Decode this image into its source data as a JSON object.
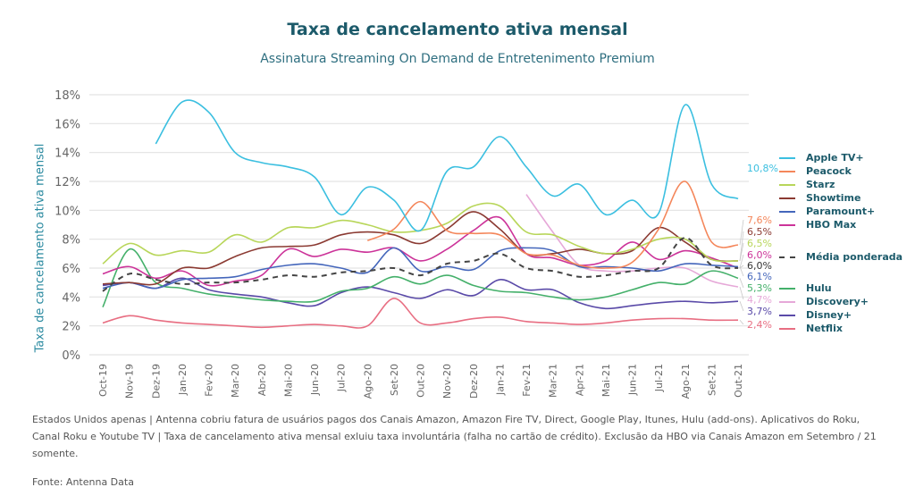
{
  "chart_data": {
    "type": "line",
    "title": "Taxa de cancelamento ativa mensal",
    "subtitle": "Assinatura Streaming On Demand de Entretenimento Premium",
    "xlabel": "",
    "ylabel": "Taxa de cancelamento ativa mensal",
    "ylim": [
      0,
      18
    ],
    "yticks": [
      "0%",
      "2%",
      "4%",
      "6%",
      "8%",
      "10%",
      "12%",
      "14%",
      "16%",
      "18%"
    ],
    "grid": true,
    "legend_position": "right",
    "categories": [
      "Oct-19",
      "Nov-19",
      "Dez-19",
      "Jan-20",
      "Fev-20",
      "Mar-20",
      "Abr-20",
      "Mai-20",
      "Jun-20",
      "Jul-20",
      "Ago-20",
      "Set-20",
      "Out-20",
      "Nov-20",
      "Dez-20",
      "Jan-21",
      "Fev-21",
      "Mar-21",
      "Apr-21",
      "Mai-21",
      "Jun-21",
      "Jul-21",
      "Ago-21",
      "Set-21",
      "Out-21"
    ],
    "series": [
      {
        "name": "Apple TV+",
        "color": "#3bbfe0",
        "dashed": false,
        "end_label": "10,8%",
        "values": [
          null,
          null,
          14.6,
          17.5,
          16.8,
          14.0,
          13.3,
          13.0,
          12.3,
          9.7,
          11.6,
          10.7,
          8.6,
          12.7,
          13.0,
          15.1,
          13.0,
          11.0,
          11.8,
          9.7,
          10.7,
          9.8,
          17.3,
          11.8,
          10.8
        ]
      },
      {
        "name": "Peacock",
        "color": "#f4865a",
        "dashed": false,
        "end_label": "7,6%",
        "values": [
          null,
          null,
          null,
          null,
          null,
          null,
          null,
          null,
          null,
          null,
          7.9,
          8.7,
          10.6,
          8.6,
          8.4,
          8.3,
          7.0,
          6.9,
          6.2,
          6.0,
          6.4,
          8.7,
          12.0,
          7.8,
          7.6
        ]
      },
      {
        "name": "Starz",
        "color": "#b8d65a",
        "dashed": false,
        "end_label": "6,5%",
        "values": [
          6.3,
          7.7,
          6.9,
          7.2,
          7.1,
          8.3,
          7.8,
          8.8,
          8.8,
          9.3,
          9.0,
          8.5,
          8.6,
          9.1,
          10.3,
          10.3,
          8.5,
          8.3,
          7.5,
          7.0,
          7.3,
          8.0,
          8.0,
          6.6,
          6.5
        ]
      },
      {
        "name": "Showtime",
        "color": "#8b3a32",
        "dashed": false,
        "end_label": "6,5%",
        "values": [
          4.9,
          5.0,
          4.9,
          6.0,
          6.0,
          6.8,
          7.4,
          7.5,
          7.6,
          8.3,
          8.5,
          8.3,
          7.7,
          8.7,
          9.9,
          8.7,
          7.0,
          7.0,
          7.3,
          7.0,
          7.2,
          8.8,
          7.8,
          6.6,
          6.5
        ]
      },
      {
        "name": "Paramount+",
        "color": "#4466bb",
        "dashed": false,
        "end_label": "6,1%",
        "values": [
          4.6,
          5.0,
          4.6,
          5.2,
          5.3,
          5.4,
          5.9,
          6.2,
          6.3,
          6.0,
          5.7,
          7.4,
          5.8,
          6.1,
          5.9,
          7.2,
          7.4,
          7.2,
          6.1,
          6.1,
          6.0,
          5.8,
          6.3,
          6.2,
          6.1
        ]
      },
      {
        "name": "HBO Max",
        "color": "#cc3399",
        "dashed": false,
        "end_label": "6,0%",
        "values": [
          5.6,
          6.1,
          5.3,
          5.8,
          4.8,
          5.1,
          5.5,
          7.3,
          6.8,
          7.3,
          7.1,
          7.4,
          6.5,
          7.3,
          8.6,
          9.5,
          7.0,
          6.7,
          6.2,
          6.5,
          7.8,
          6.6,
          7.2,
          6.7,
          6.0
        ]
      },
      {
        "name": "Média ponderada",
        "color": "#444444",
        "dashed": true,
        "end_label": "6,0%",
        "values": [
          4.4,
          5.6,
          5.2,
          4.9,
          5.0,
          5.0,
          5.2,
          5.5,
          5.4,
          5.7,
          5.8,
          6.0,
          5.5,
          6.3,
          6.5,
          7.0,
          6.0,
          5.8,
          5.4,
          5.5,
          5.8,
          6.0,
          8.1,
          6.2,
          6.0
        ]
      },
      {
        "name": "Hulu",
        "color": "#44b06a",
        "dashed": false,
        "end_label": "5,3%",
        "values": [
          3.3,
          7.3,
          5.0,
          4.6,
          4.2,
          4.0,
          3.8,
          3.7,
          3.7,
          4.4,
          4.6,
          5.4,
          4.9,
          5.5,
          4.8,
          4.4,
          4.3,
          4.0,
          3.8,
          4.0,
          4.5,
          5.0,
          4.9,
          5.8,
          5.3
        ]
      },
      {
        "name": "Discovery+",
        "color": "#e6a8d8",
        "dashed": false,
        "end_label": "4,7%",
        "values": [
          null,
          null,
          null,
          null,
          null,
          null,
          null,
          null,
          null,
          null,
          null,
          null,
          null,
          null,
          null,
          null,
          11.1,
          8.5,
          6.2,
          5.8,
          5.8,
          6.0,
          6.0,
          5.1,
          4.7
        ]
      },
      {
        "name": "Disney+",
        "color": "#5a4aa8",
        "dashed": false,
        "end_label": "3,7%",
        "values": [
          4.8,
          5.0,
          4.6,
          5.3,
          4.5,
          4.2,
          4.0,
          3.6,
          3.4,
          4.3,
          4.7,
          4.3,
          3.9,
          4.5,
          4.1,
          5.2,
          4.5,
          4.5,
          3.6,
          3.2,
          3.4,
          3.6,
          3.7,
          3.6,
          3.7
        ]
      },
      {
        "name": "Netflix",
        "color": "#e86e82",
        "dashed": false,
        "end_label": "2,4%",
        "values": [
          2.2,
          2.7,
          2.4,
          2.2,
          2.1,
          2.0,
          1.9,
          2.0,
          2.1,
          2.0,
          2.0,
          3.9,
          2.2,
          2.2,
          2.5,
          2.6,
          2.3,
          2.2,
          2.1,
          2.2,
          2.4,
          2.5,
          2.5,
          2.4,
          2.4
        ]
      }
    ]
  },
  "footnote": "Estados Unidos apenas | Antenna cobriu fatura de usuários pagos dos Canais Amazon, Amazon Fire TV, Direct, Google Play, Itunes, Hulu (add-ons). Aplicativos do Roku, Canal Roku e Youtube TV | Taxa de cancelamento ativa mensal exluiu taxa involuntária (falha no cartão de crédito). Exclusão da HBO via Canais Amazon em Setembro / 21 somente.",
  "source": "Fonte: Antenna Data"
}
